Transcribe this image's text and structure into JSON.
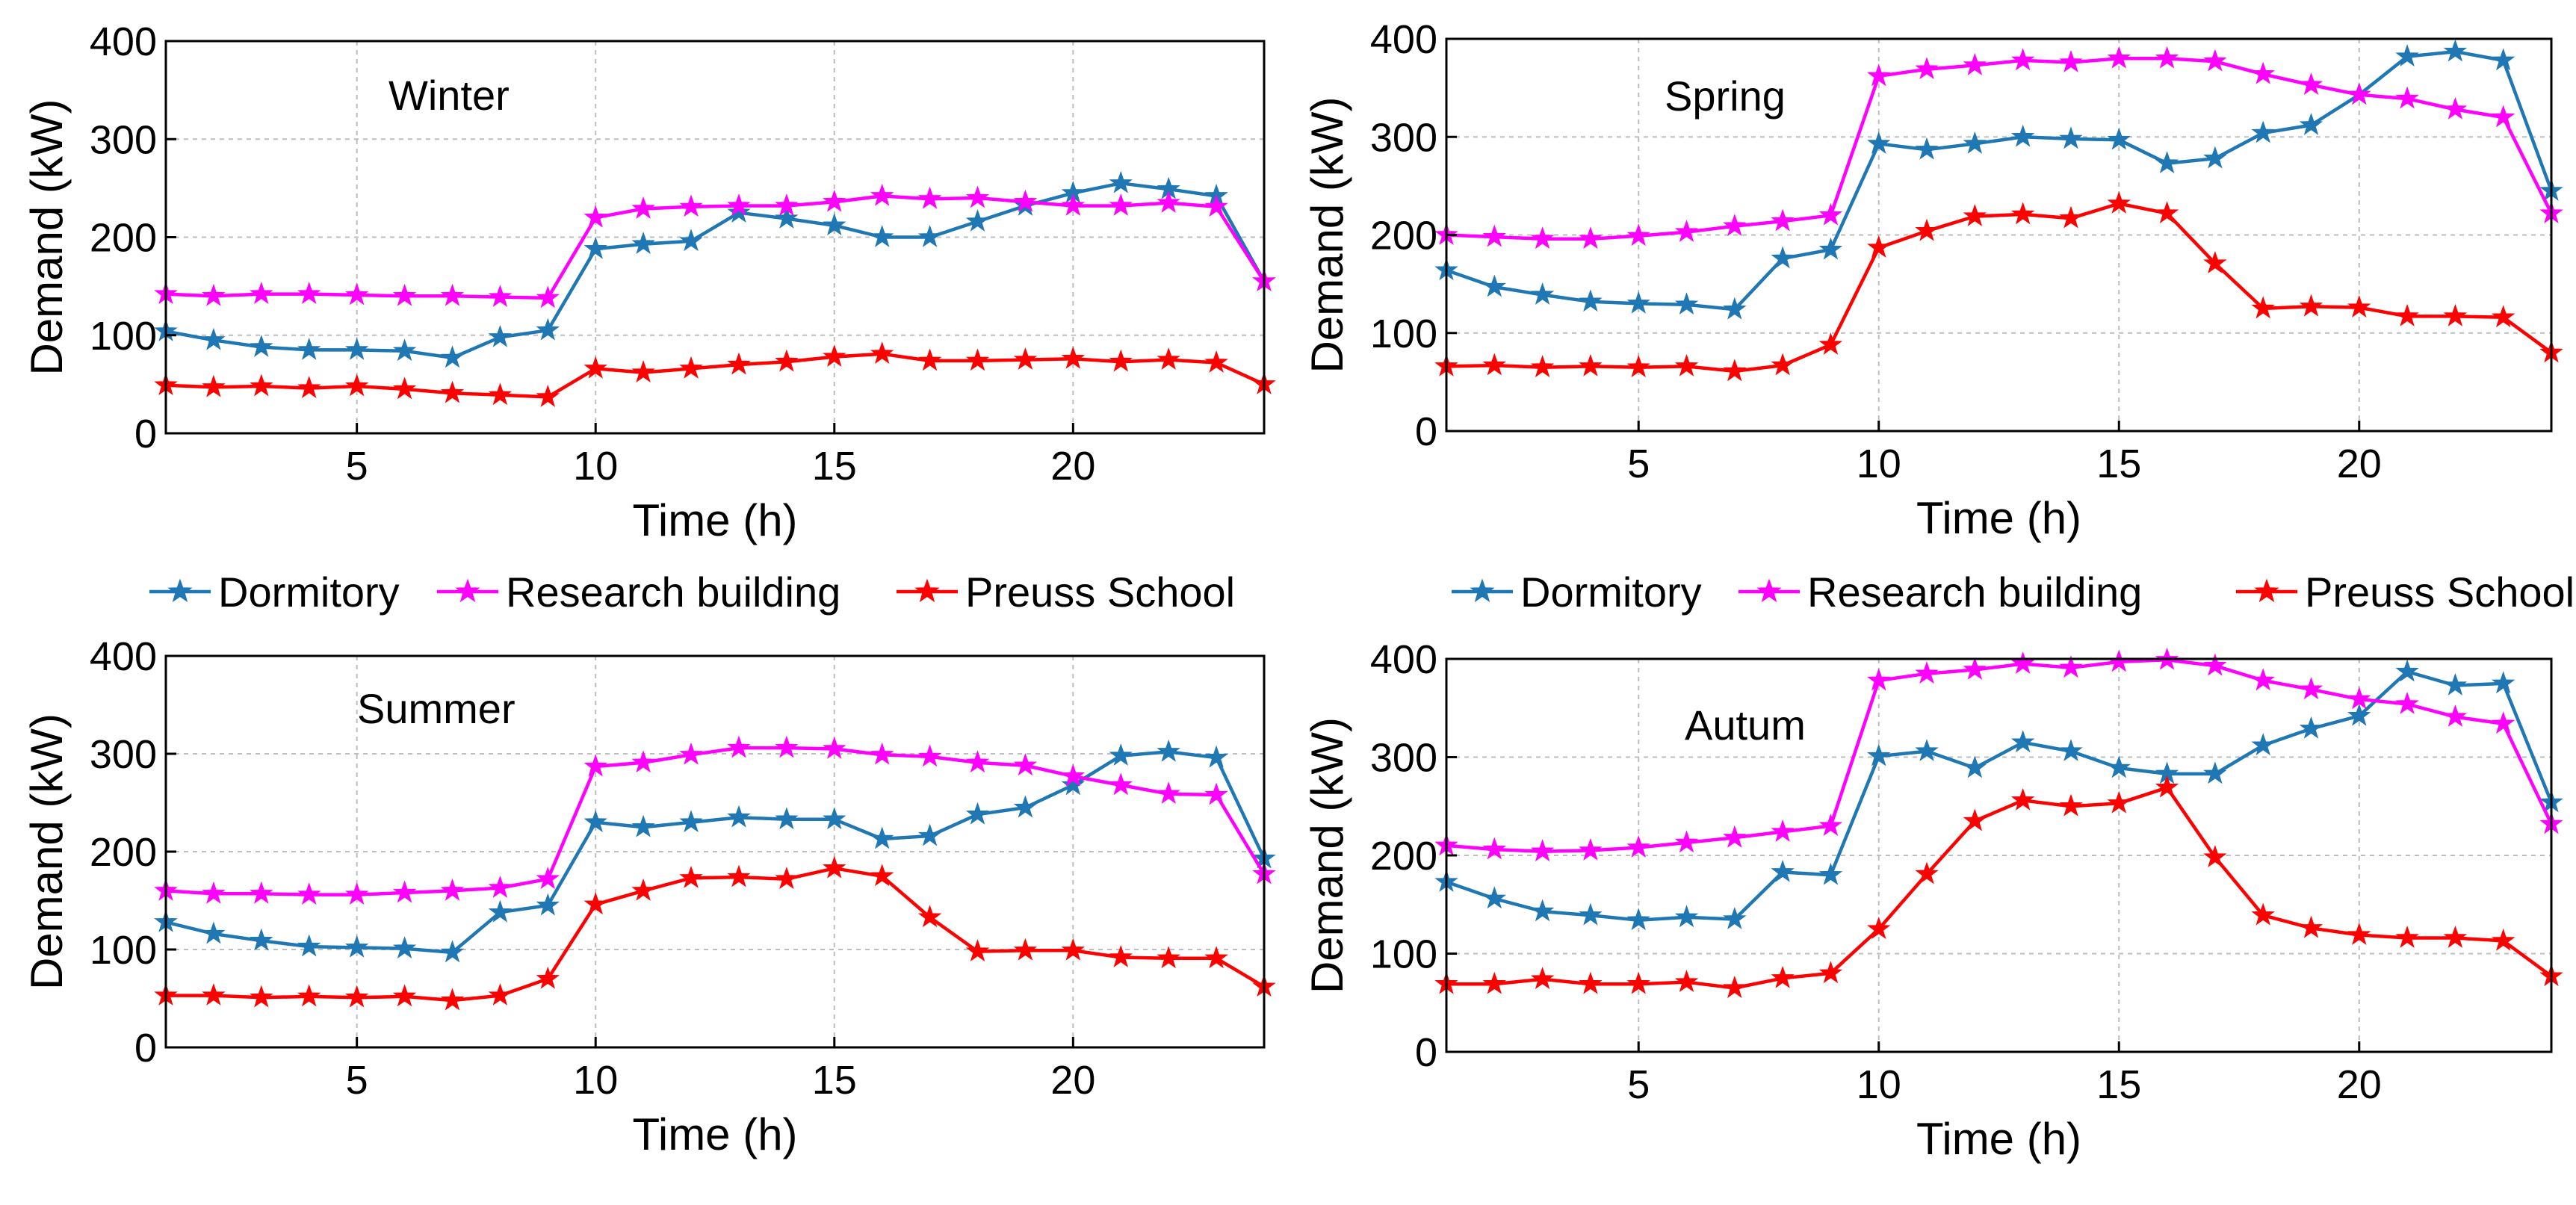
{
  "chart_data": [
    {
      "type": "line",
      "title": "Winter",
      "xlabel": "Time (h)",
      "ylabel": "Demand (kW)",
      "xlim": [
        1,
        24
      ],
      "ylim": [
        0,
        400
      ],
      "xticks": [
        5,
        10,
        15,
        20
      ],
      "yticks": [
        0,
        100,
        200,
        300,
        400
      ],
      "grid": true,
      "x": [
        1,
        2,
        3,
        4,
        5,
        6,
        7,
        8,
        9,
        10,
        11,
        12,
        13,
        14,
        15,
        16,
        17,
        18,
        19,
        20,
        21,
        22,
        23,
        24
      ],
      "series": [
        {
          "name": "Dormitory",
          "color": "#1f77b4",
          "values": [
            104,
            95,
            88,
            85,
            85,
            84,
            77,
            98,
            105,
            188,
            193,
            196,
            225,
            219,
            212,
            200,
            200,
            216,
            232,
            245,
            255,
            249,
            242,
            155
          ]
        },
        {
          "name": "Research building",
          "color": "#ff00ff",
          "values": [
            142,
            140,
            142,
            142,
            141,
            140,
            140,
            139,
            138,
            220,
            229,
            231,
            232,
            232,
            236,
            242,
            239,
            240,
            236,
            232,
            232,
            235,
            231,
            155
          ]
        },
        {
          "name": "Preuss School",
          "color": "#ff0000",
          "values": [
            49,
            47,
            48,
            46,
            48,
            45,
            41,
            39,
            37,
            66,
            62,
            66,
            70,
            73,
            78,
            81,
            74,
            74,
            75,
            76,
            73,
            75,
            72,
            50
          ]
        }
      ]
    },
    {
      "type": "line",
      "title": "Spring",
      "xlabel": "Time (h)",
      "ylabel": "Demand (kW)",
      "xlim": [
        1,
        24
      ],
      "ylim": [
        0,
        400
      ],
      "xticks": [
        5,
        10,
        15,
        20
      ],
      "yticks": [
        0,
        100,
        200,
        300,
        400
      ],
      "grid": true,
      "x": [
        1,
        2,
        3,
        4,
        5,
        6,
        7,
        8,
        9,
        10,
        11,
        12,
        13,
        14,
        15,
        16,
        17,
        18,
        19,
        20,
        21,
        22,
        23,
        24
      ],
      "series": [
        {
          "name": "Dormitory",
          "color": "#1f77b4",
          "values": [
            164,
            147,
            139,
            132,
            130,
            129,
            124,
            176,
            185,
            293,
            287,
            293,
            300,
            298,
            297,
            273,
            278,
            304,
            312,
            343,
            382,
            387,
            378,
            245
          ]
        },
        {
          "name": "Research building",
          "color": "#ff00ff",
          "values": [
            200,
            198,
            196,
            196,
            199,
            203,
            209,
            214,
            220,
            362,
            369,
            373,
            378,
            376,
            380,
            380,
            377,
            364,
            353,
            343,
            339,
            328,
            320,
            222
          ]
        },
        {
          "name": "Preuss School",
          "color": "#ff0000",
          "values": [
            66,
            67,
            65,
            66,
            65,
            66,
            61,
            67,
            88,
            187,
            204,
            219,
            221,
            217,
            232,
            222,
            171,
            125,
            127,
            126,
            117,
            117,
            116,
            80
          ]
        }
      ]
    },
    {
      "type": "line",
      "title": "Summer",
      "xlabel": "Time (h)",
      "ylabel": "Demand (kW)",
      "xlim": [
        1,
        24
      ],
      "ylim": [
        0,
        400
      ],
      "xticks": [
        5,
        10,
        15,
        20
      ],
      "yticks": [
        0,
        100,
        200,
        300,
        400
      ],
      "grid": true,
      "x": [
        1,
        2,
        3,
        4,
        5,
        6,
        7,
        8,
        9,
        10,
        11,
        12,
        13,
        14,
        15,
        16,
        17,
        18,
        19,
        20,
        21,
        22,
        23,
        24
      ],
      "series": [
        {
          "name": "Dormitory",
          "color": "#1f77b4",
          "values": [
            128,
            116,
            109,
            103,
            102,
            101,
            97,
            138,
            145,
            230,
            225,
            230,
            235,
            233,
            233,
            213,
            216,
            238,
            245,
            268,
            298,
            302,
            296,
            193
          ]
        },
        {
          "name": "Research building",
          "color": "#ff00ff",
          "values": [
            160,
            157,
            157,
            156,
            156,
            158,
            160,
            163,
            172,
            287,
            291,
            299,
            306,
            306,
            305,
            299,
            297,
            291,
            288,
            277,
            268,
            259,
            258,
            177
          ]
        },
        {
          "name": "Preuss School",
          "color": "#ff0000",
          "values": [
            53,
            53,
            51,
            52,
            51,
            52,
            48,
            53,
            70,
            146,
            160,
            173,
            174,
            172,
            183,
            175,
            133,
            98,
            99,
            99,
            92,
            91,
            91,
            62
          ]
        }
      ]
    },
    {
      "type": "line",
      "title": "Autum",
      "xlabel": "Time (h)",
      "ylabel": "Demand (kW)",
      "xlim": [
        1,
        24
      ],
      "ylim": [
        0,
        400
      ],
      "xticks": [
        5,
        10,
        15,
        20
      ],
      "yticks": [
        0,
        100,
        200,
        300,
        400
      ],
      "grid": true,
      "x": [
        1,
        2,
        3,
        4,
        5,
        6,
        7,
        8,
        9,
        10,
        11,
        12,
        13,
        14,
        15,
        16,
        17,
        18,
        19,
        20,
        21,
        22,
        23,
        24
      ],
      "series": [
        {
          "name": "Dormitory",
          "color": "#1f77b4",
          "values": [
            173,
            156,
            143,
            139,
            134,
            137,
            135,
            183,
            180,
            301,
            306,
            289,
            315,
            306,
            289,
            283,
            283,
            312,
            329,
            342,
            387,
            373,
            375,
            254
          ]
        },
        {
          "name": "Research building",
          "color": "#ff00ff",
          "values": [
            210,
            206,
            204,
            205,
            208,
            213,
            218,
            224,
            230,
            378,
            385,
            389,
            395,
            391,
            397,
            399,
            393,
            378,
            369,
            359,
            354,
            341,
            334,
            232
          ]
        },
        {
          "name": "Preuss School",
          "color": "#ff0000",
          "values": [
            69,
            69,
            74,
            69,
            69,
            71,
            65,
            75,
            80,
            125,
            181,
            235,
            256,
            250,
            253,
            269,
            198,
            139,
            126,
            119,
            116,
            116,
            113,
            77
          ]
        }
      ]
    }
  ],
  "legends": [
    {
      "items": [
        "Dormitory",
        "Research building",
        "Preuss School"
      ]
    },
    {
      "items": [
        "Dormitory",
        "Research building",
        "Preuss School"
      ]
    }
  ]
}
